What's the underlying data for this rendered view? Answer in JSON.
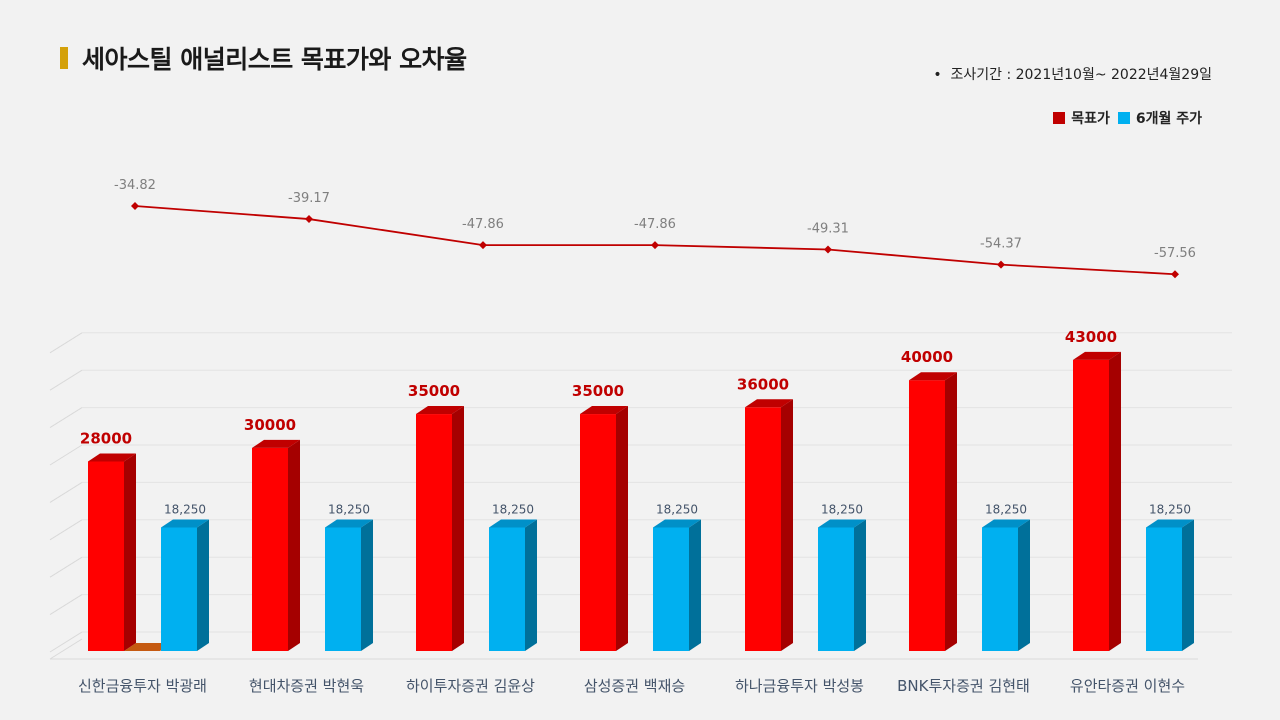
{
  "header": {
    "title": "세아스틸 애널리스트 목표가와 오차율",
    "period": "조사기간 : 2021년10월~ 2022년4월29일"
  },
  "legend": [
    {
      "label": "목표가",
      "color": "#c00000"
    },
    {
      "label": "6개월 주가",
      "color": "#00b0f0"
    }
  ],
  "chart_data": {
    "type": "bar",
    "categories": [
      "신한금융투자 박광래",
      "현대차증권 박현욱",
      "하이투자증권 김윤상",
      "삼성증권 백재승",
      "하나금융투자 박성봉",
      "BNK투자증권 김현태",
      "유안타증권 이현수"
    ],
    "series": [
      {
        "name": "목표가",
        "values": [
          28000,
          30000,
          35000,
          35000,
          36000,
          40000,
          43000
        ],
        "color": "#ff0000"
      },
      {
        "name": "6개월 주가",
        "values": [
          18250,
          18250,
          18250,
          18250,
          18250,
          18250,
          18250
        ],
        "color": "#00b0f0"
      }
    ],
    "line_series": {
      "name": "오차율",
      "values": [
        -34.82,
        -39.17,
        -47.86,
        -47.86,
        -49.31,
        -54.37,
        -57.56
      ],
      "color": "#c00000"
    },
    "ylim": [
      0,
      45000
    ],
    "grid": true
  }
}
